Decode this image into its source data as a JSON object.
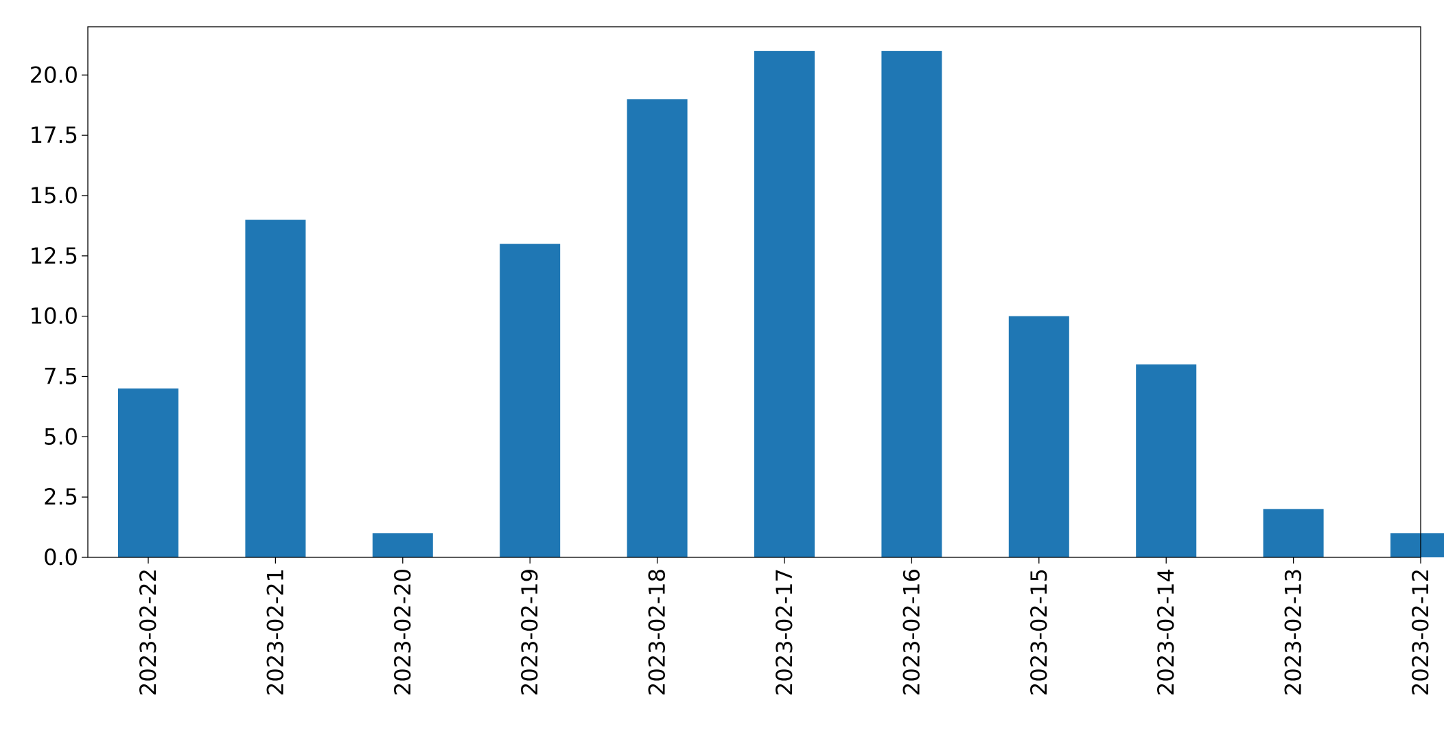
{
  "chart_data": {
    "type": "bar",
    "title": "",
    "xlabel": "",
    "ylabel": "",
    "categories": [
      "2023-02-22",
      "2023-02-21",
      "2023-02-20",
      "2023-02-19",
      "2023-02-18",
      "2023-02-17",
      "2023-02-16",
      "2023-02-15",
      "2023-02-14",
      "2023-02-13",
      "2023-02-12"
    ],
    "values": [
      7,
      14,
      1,
      13,
      19,
      21,
      21,
      10,
      8,
      2,
      1
    ],
    "ylim": [
      0,
      22
    ],
    "yticks": [
      0.0,
      2.5,
      5.0,
      7.5,
      10.0,
      12.5,
      15.0,
      17.5,
      20.0
    ],
    "ytick_labels": [
      "0.0",
      "2.5",
      "5.0",
      "7.5",
      "10.0",
      "12.5",
      "15.0",
      "17.5",
      "20.0"
    ],
    "grid": false,
    "legend": "none",
    "bar_color": "#1f77b4"
  }
}
